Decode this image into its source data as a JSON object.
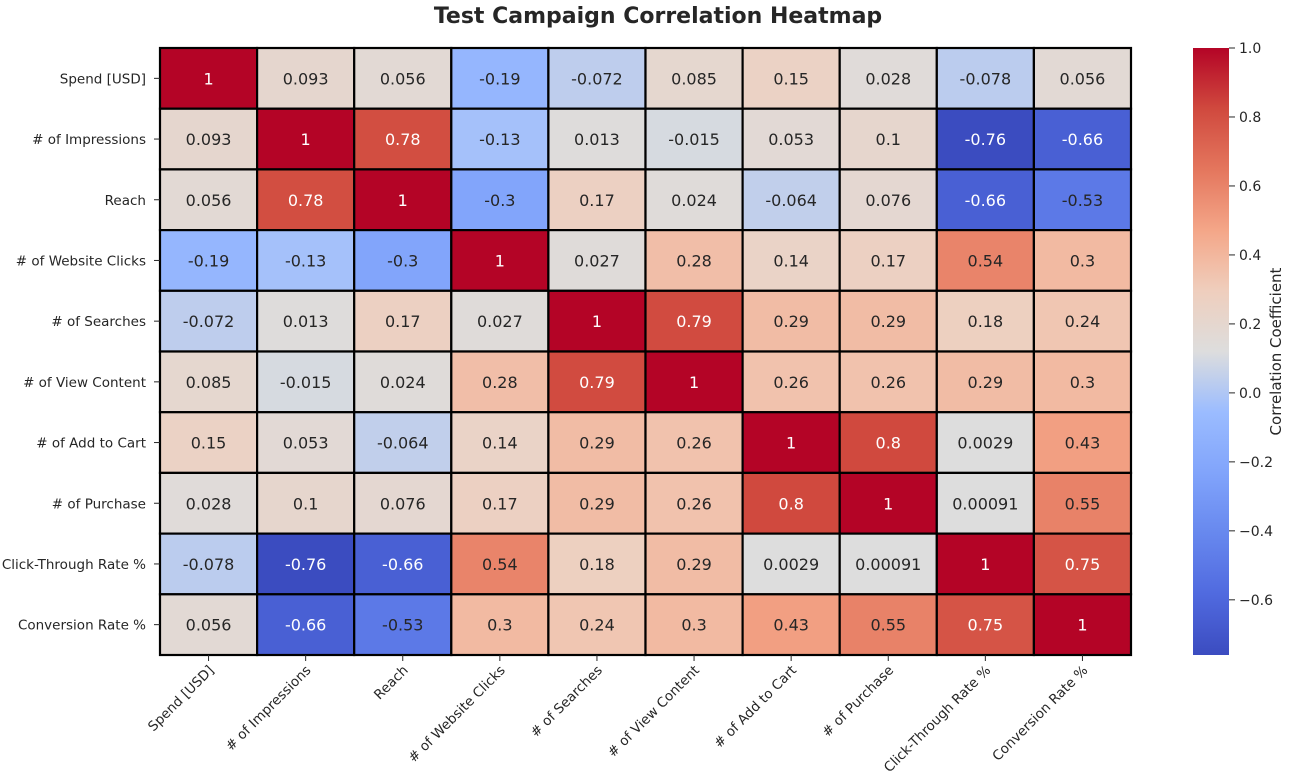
{
  "chart_data": {
    "type": "heatmap",
    "title": "Test Campaign Correlation Heatmap",
    "colormap": "coolwarm",
    "rows": [
      "Spend [USD]",
      "# of Impressions",
      "Reach",
      "# of Website Clicks",
      "# of Searches",
      "# of View Content",
      "# of Add to Cart",
      "# of Purchase",
      "Click-Through Rate %",
      "Conversion Rate %"
    ],
    "columns": [
      "Spend [USD]",
      "# of Impressions",
      "Reach",
      "# of Website Clicks",
      "# of Searches",
      "# of View Content",
      "# of Add to Cart",
      "# of Purchase",
      "Click-Through Rate %",
      "Conversion Rate %"
    ],
    "values": [
      [
        1,
        0.093,
        0.056,
        -0.19,
        -0.072,
        0.085,
        0.15,
        0.028,
        -0.078,
        0.056
      ],
      [
        0.093,
        1,
        0.78,
        -0.13,
        0.013,
        -0.015,
        0.053,
        0.1,
        -0.76,
        -0.66
      ],
      [
        0.056,
        0.78,
        1,
        -0.3,
        0.17,
        0.024,
        -0.064,
        0.076,
        -0.66,
        -0.53
      ],
      [
        -0.19,
        -0.13,
        -0.3,
        1,
        0.027,
        0.28,
        0.14,
        0.17,
        0.54,
        0.3
      ],
      [
        -0.072,
        0.013,
        0.17,
        0.027,
        1,
        0.79,
        0.29,
        0.29,
        0.18,
        0.24
      ],
      [
        0.085,
        -0.015,
        0.024,
        0.28,
        0.79,
        1,
        0.26,
        0.26,
        0.29,
        0.3
      ],
      [
        0.15,
        0.053,
        -0.064,
        0.14,
        0.29,
        0.26,
        1,
        0.8,
        0.0029,
        0.43
      ],
      [
        0.028,
        0.1,
        0.076,
        0.17,
        0.29,
        0.26,
        0.8,
        1,
        0.00091,
        0.55
      ],
      [
        -0.078,
        -0.76,
        -0.66,
        0.54,
        0.18,
        0.29,
        0.0029,
        0.00091,
        1,
        0.75
      ],
      [
        0.056,
        -0.66,
        -0.53,
        0.3,
        0.24,
        0.3,
        0.43,
        0.55,
        0.75,
        1
      ]
    ],
    "colorbar": {
      "label": "Correlation Coefficient",
      "range": [
        -0.76,
        1.0
      ],
      "ticks": [
        1.0,
        0.8,
        0.6,
        0.4,
        0.2,
        0.0,
        -0.2,
        -0.4,
        -0.6
      ],
      "tick_labels": [
        "1.0",
        "0.8",
        "0.6",
        "0.4",
        "0.2",
        "0.0",
        "−0.2",
        "−0.4",
        "−0.6"
      ]
    },
    "annotations": true,
    "grid": true,
    "cell_border_color": "#000000",
    "colors": {
      "high": "#b40426",
      "mid": "#dddddd",
      "low": "#3b4cc0"
    }
  }
}
